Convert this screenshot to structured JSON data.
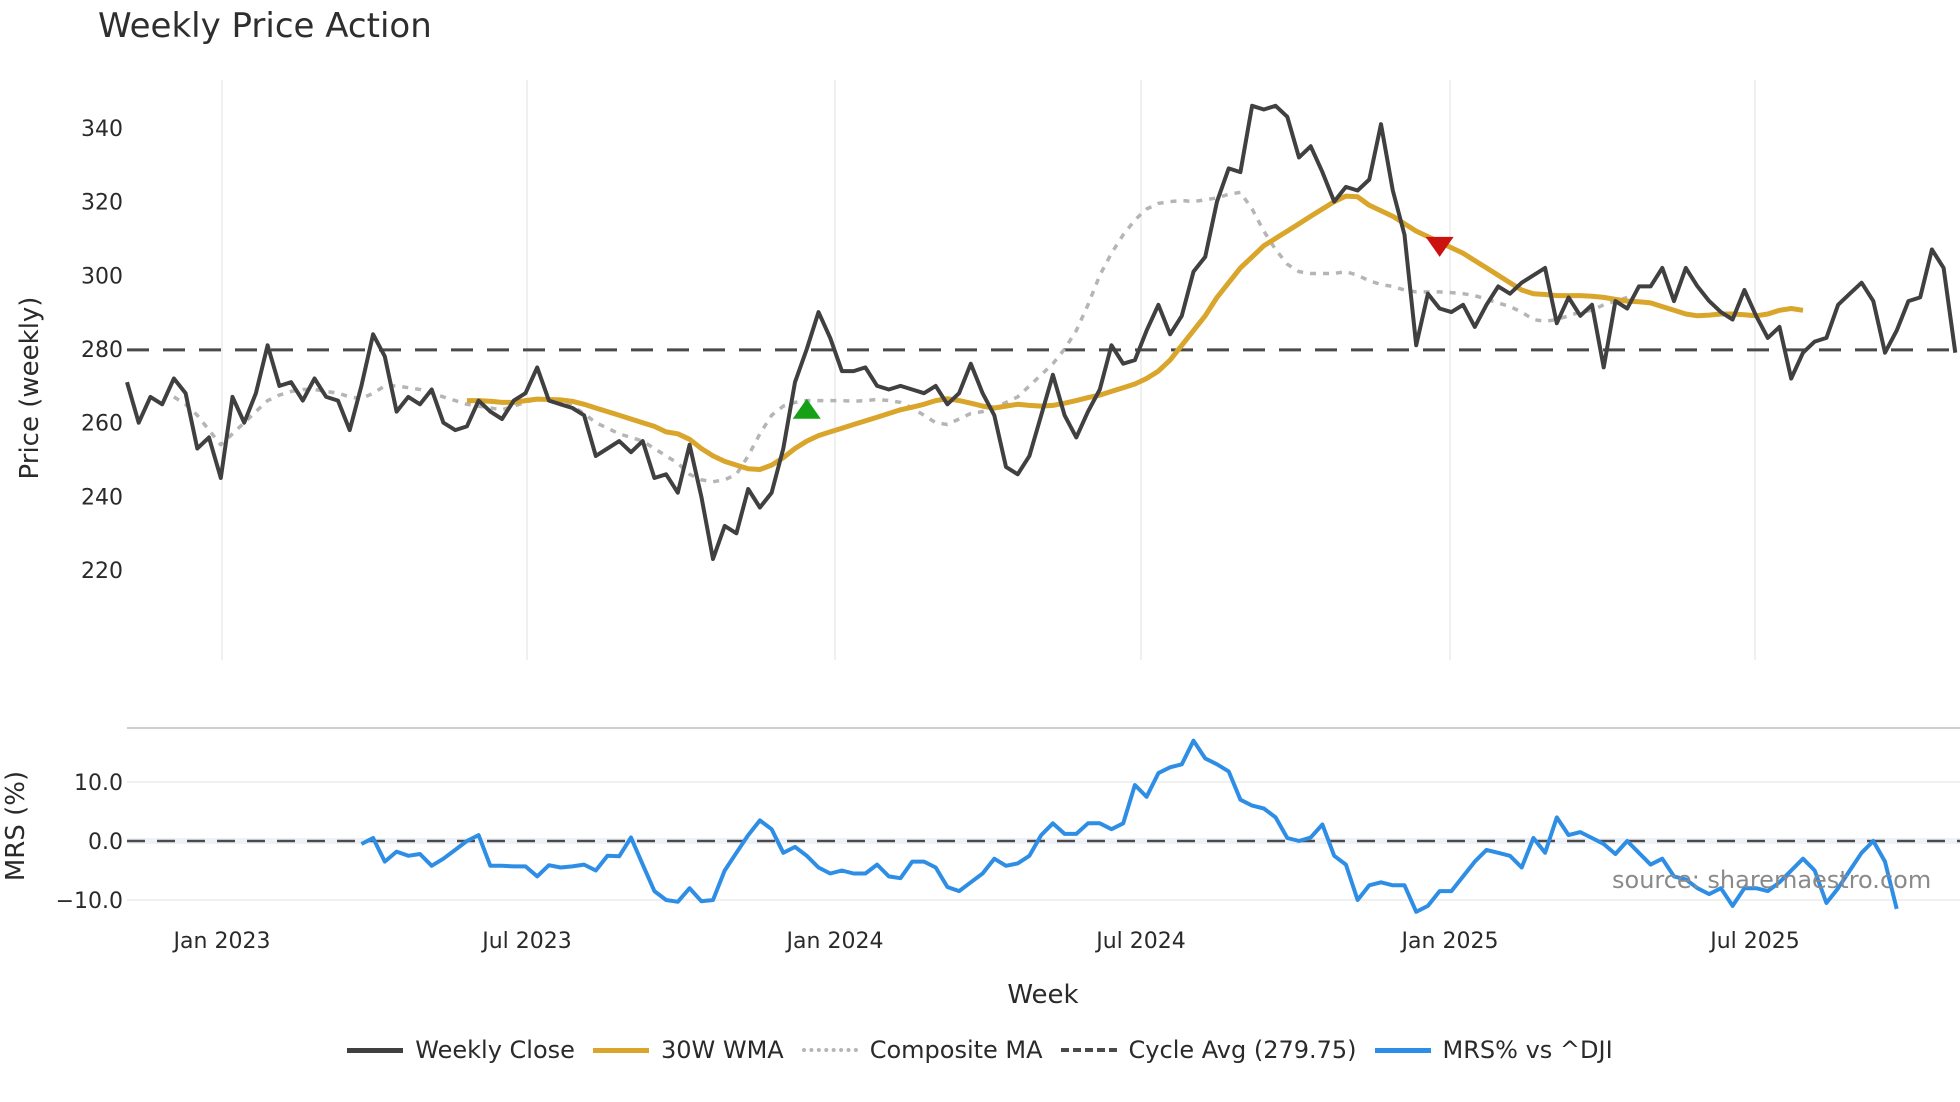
{
  "title": "Weekly Price Action",
  "source": "source: sharemaestro.com",
  "colors": {
    "weekly_close": "#404040",
    "wma": "#d9a52b",
    "composite": "#b5b5b5",
    "cycle_avg": "#4a4a4a",
    "mrs": "#2e8ee6",
    "buy_marker": "#16a016",
    "sell_marker": "#cc1111"
  },
  "legend": [
    {
      "label": "Weekly Close",
      "key": "weekly_close"
    },
    {
      "label": "30W WMA",
      "key": "wma"
    },
    {
      "label": "Composite MA",
      "key": "composite"
    },
    {
      "label": "Cycle Avg (279.75)",
      "key": "cycle_avg"
    },
    {
      "label": "MRS% vs ^DJI",
      "key": "mrs"
    }
  ],
  "chart_data": [
    {
      "type": "line",
      "title": "Weekly Price Action",
      "xlabel": "Week",
      "ylabel": "Price (weekly)",
      "ylim": [
        216,
        354
      ],
      "yticks": [
        220,
        240,
        260,
        280,
        300,
        320,
        340
      ],
      "xticks": [
        "Jan 2023",
        "Jul 2023",
        "Jan 2024",
        "Jul 2024",
        "Jan 2025",
        "Jul 2025"
      ],
      "grid": "vertical",
      "legend_position": "bottom",
      "cycle_avg": 279.75,
      "series": [
        {
          "name": "Weekly Close",
          "start_index": 0,
          "values": [
            271,
            260,
            267,
            265,
            272,
            268,
            253,
            256,
            245,
            267,
            260,
            268,
            281,
            270,
            271,
            266,
            272,
            267,
            266,
            258,
            270,
            284,
            278,
            263,
            267,
            265,
            269,
            260,
            258,
            259,
            266,
            263,
            261,
            266,
            268,
            275,
            266,
            265,
            264,
            262,
            251,
            253,
            255,
            252,
            255,
            245,
            246,
            241,
            254,
            240,
            223,
            232,
            230,
            242,
            237,
            241,
            253,
            271,
            280,
            290,
            283,
            274,
            274,
            275,
            270,
            269,
            270,
            269,
            268,
            270,
            265,
            268,
            276,
            268,
            262,
            248,
            246,
            251,
            262,
            273,
            262,
            256,
            263,
            269,
            281,
            276,
            277,
            285,
            292,
            284,
            289,
            301,
            305,
            320,
            329,
            328,
            346,
            345,
            346,
            343,
            332,
            335,
            328,
            320,
            324,
            323,
            326,
            341,
            323,
            311,
            281,
            295,
            291,
            290,
            292,
            286,
            292,
            297,
            295,
            298,
            300,
            302,
            287,
            294,
            289,
            292,
            275,
            293,
            291,
            297,
            297,
            302,
            293,
            302,
            297,
            293,
            290,
            288,
            296,
            289,
            283,
            286,
            272,
            279,
            282,
            283,
            292,
            295,
            298,
            293,
            279,
            285,
            293,
            294,
            307,
            302,
            279
          ]
        },
        {
          "name": "30W WMA",
          "start_index": 29,
          "values": [
            266,
            266,
            265.8,
            265.5,
            265.5,
            266,
            266.4,
            266.3,
            266.2,
            265.8,
            265,
            264,
            263,
            262,
            261,
            260,
            259,
            257.5,
            257,
            255.5,
            253,
            251,
            249.5,
            248.5,
            247.5,
            247.3,
            248.5,
            250.5,
            253,
            255,
            256.5,
            257.5,
            258.5,
            259.5,
            260.5,
            261.5,
            262.5,
            263.5,
            264.2,
            265,
            266,
            266.5,
            266,
            265.3,
            264.5,
            264,
            264.5,
            265,
            264.7,
            264.5,
            264.7,
            265.3,
            266,
            266.8,
            267.5,
            268.5,
            269.5,
            270.5,
            272,
            274,
            277,
            281,
            285,
            289,
            294,
            298,
            302,
            305,
            308,
            310,
            312,
            314,
            316,
            318,
            320,
            321.5,
            321.3,
            319,
            317.5,
            316,
            314,
            312,
            310.5,
            309,
            307.5,
            306,
            304,
            302,
            300,
            298,
            296,
            295,
            294.8,
            294.5,
            294.5,
            294.5,
            294.3,
            294,
            293.5,
            293,
            292.8,
            292.5,
            291.5,
            290.5,
            289.5,
            289,
            289.2,
            289.5,
            289.5,
            289.3,
            289,
            289.5,
            290.5,
            291,
            290.5
          ]
        },
        {
          "name": "Composite MA",
          "start_index": 4,
          "values": [
            267,
            265,
            262,
            258,
            254,
            257,
            260,
            263,
            266,
            267.5,
            268.5,
            269,
            269,
            268.5,
            268,
            267,
            266.5,
            268,
            270,
            270,
            269.5,
            269,
            268,
            267,
            266,
            265,
            264.5,
            264,
            263.5,
            264.5,
            265.5,
            266.5,
            266.5,
            266,
            264.5,
            262.5,
            260,
            258.5,
            257,
            256,
            255,
            253,
            251,
            249,
            246,
            244.5,
            244,
            244.5,
            246,
            251,
            257,
            262,
            264.5,
            265.5,
            266,
            266,
            266,
            266,
            265.8,
            266,
            266.3,
            266,
            265.5,
            264,
            262,
            260,
            259.5,
            261,
            262.5,
            263,
            264,
            265.5,
            267,
            270,
            273,
            276,
            280,
            285,
            292,
            300,
            306,
            311,
            315,
            318,
            319.5,
            320,
            320.3,
            320,
            320.5,
            321,
            322,
            322.5,
            318,
            312,
            307,
            303,
            301,
            300.5,
            300.5,
            300.5,
            301,
            300,
            298.5,
            297.5,
            297,
            296,
            295.5,
            295.5,
            295.5,
            295.3,
            295,
            294.5,
            293.5,
            292.5,
            291.5,
            290,
            288,
            287.5,
            288,
            289,
            290,
            290.5,
            292,
            293,
            294
          ]
        },
        {
          "name": "MRS% vs ^DJI",
          "start_index": 20,
          "panel": "lower",
          "ylim": [
            -13,
            19
          ],
          "yticks": [
            -10,
            0,
            10
          ],
          "ylabel": "MRS (%)",
          "values": [
            -0.5,
            0.5,
            -3.5,
            -1.8,
            -2.5,
            -2.2,
            -4.2,
            -3,
            -1.5,
            0,
            1,
            -4.2,
            -4.2,
            -4.3,
            -4.3,
            -6,
            -4.1,
            -4.5,
            -4.3,
            -4,
            -5,
            -2.5,
            -2.6,
            0.6,
            -4,
            -8.5,
            -10,
            -10.3,
            -8,
            -10.2,
            -10,
            -5,
            -2,
            1,
            3.5,
            2,
            -2,
            -1,
            -2.5,
            -4.5,
            -5.5,
            -5,
            -5.5,
            -5.5,
            -4,
            -6,
            -6.3,
            -3.5,
            -3.5,
            -4.5,
            -7.8,
            -8.5,
            -7,
            -5.5,
            -3,
            -4.2,
            -3.8,
            -2.5,
            1,
            3,
            1.2,
            1.2,
            3,
            3,
            2,
            3,
            9.5,
            7.5,
            11.5,
            12.5,
            13,
            17,
            14,
            13,
            11.8,
            7,
            6,
            5.5,
            4,
            0.5,
            0,
            0.6,
            2.8,
            -2.5,
            -4,
            -10,
            -7.5,
            -7,
            -7.5,
            -7.5,
            -12,
            -11,
            -8.5,
            -8.5,
            -6,
            -3.5,
            -1.5,
            -2,
            -2.5,
            -4.5,
            0.5,
            -2,
            4,
            1,
            1.5,
            0.5,
            -0.5,
            -2.2,
            0,
            -2,
            -4,
            -3,
            -6,
            -6.5,
            -8,
            -9,
            -8,
            -11,
            -8,
            -8,
            -8.5,
            -7,
            -5,
            -3,
            -5,
            -10.5,
            -8,
            -5,
            -2,
            0,
            -3.5,
            -11.5
          ]
        }
      ],
      "markers": [
        {
          "type": "buy",
          "shape": "triangle-up",
          "index": 58,
          "value": 263.5
        },
        {
          "type": "sell",
          "shape": "triangle-down",
          "index": 112,
          "value": 308
        }
      ]
    }
  ],
  "axes": {
    "price_ticks": [
      "220",
      "240",
      "260",
      "280",
      "300",
      "320",
      "340"
    ],
    "mrs_ticks": [
      "10.0",
      "0.0",
      "−10.0"
    ],
    "x_ticks": [
      "Jan 2023",
      "Jul 2023",
      "Jan 2024",
      "Jul 2024",
      "Jan 2025",
      "Jul 2025"
    ],
    "price_label": "Price (weekly)",
    "mrs_label": "MRS (%)",
    "x_label": "Week"
  }
}
